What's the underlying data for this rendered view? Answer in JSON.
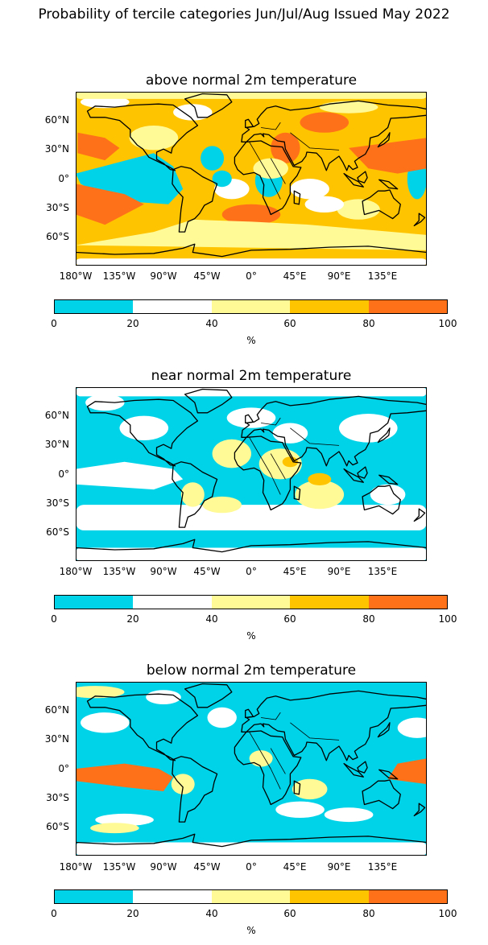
{
  "suptitle": "Probability of tercile categories Jun/Jul/Aug Issued May 2022",
  "colorbar": {
    "ticks": [
      "0",
      "20",
      "40",
      "60",
      "80",
      "100"
    ],
    "unit": "%",
    "colors": [
      "#00d3e8",
      "#ffffff",
      "#fffa96",
      "#ffc400",
      "#ff7119"
    ]
  },
  "lon_labels": [
    "180°W",
    "135°W",
    "90°W",
    "45°W",
    "0°",
    "45°E",
    "90°E",
    "135°E"
  ],
  "lat_labels": [
    "60°N",
    "30°N",
    "0°",
    "30°S",
    "60°S"
  ],
  "panels": [
    {
      "title": "above normal 2m temperature"
    },
    {
      "title": "near normal 2m temperature"
    },
    {
      "title": "below normal 2m temperature"
    }
  ]
}
